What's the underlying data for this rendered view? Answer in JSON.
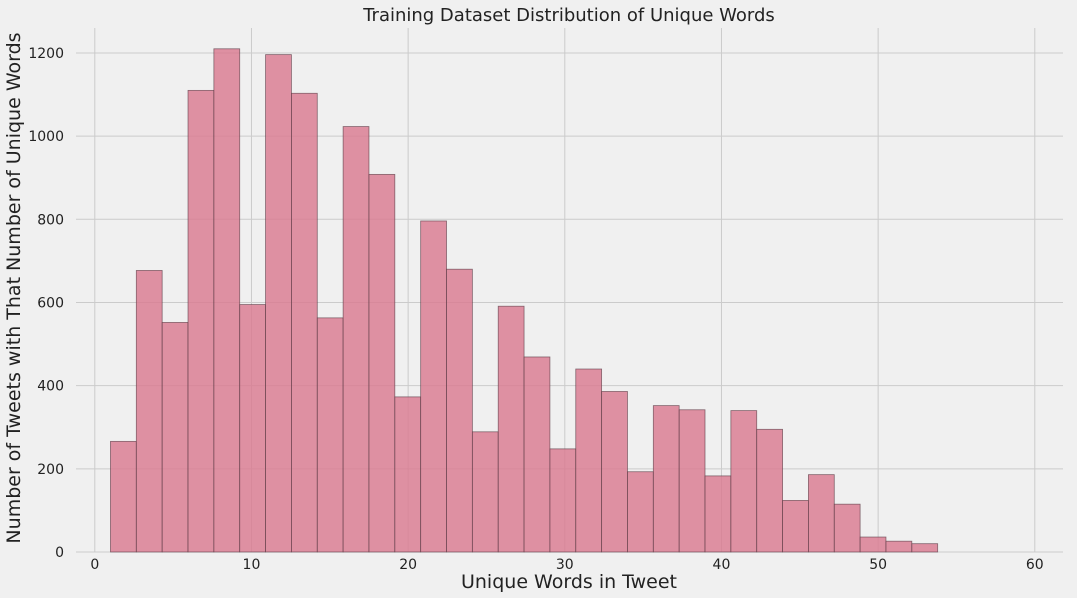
{
  "chart_data": {
    "type": "bar",
    "title": "Training Dataset Distribution of Unique Words",
    "xlabel": "Unique Words in Tweet",
    "ylabel": "Number of Tweets with That Number of Unique Words",
    "xlim": [
      -1.2,
      61.8
    ],
    "ylim": [
      0,
      1260
    ],
    "xticks": [
      0,
      10,
      20,
      30,
      40,
      50,
      60
    ],
    "yticks": [
      0,
      200,
      400,
      600,
      800,
      1000,
      1200
    ],
    "grid": true,
    "bar_color": "#d9788f",
    "bins": [
      {
        "x0": 1.0,
        "x1": 2.65,
        "count": 266
      },
      {
        "x0": 2.65,
        "x1": 4.3,
        "count": 677
      },
      {
        "x0": 4.3,
        "x1": 5.95,
        "count": 552
      },
      {
        "x0": 5.95,
        "x1": 7.6,
        "count": 1110
      },
      {
        "x0": 7.6,
        "x1": 9.25,
        "count": 1210
      },
      {
        "x0": 9.25,
        "x1": 10.9,
        "count": 595
      },
      {
        "x0": 10.9,
        "x1": 12.55,
        "count": 1196
      },
      {
        "x0": 12.55,
        "x1": 14.2,
        "count": 1103
      },
      {
        "x0": 14.2,
        "x1": 15.85,
        "count": 563
      },
      {
        "x0": 15.85,
        "x1": 17.5,
        "count": 1023
      },
      {
        "x0": 17.5,
        "x1": 19.15,
        "count": 908
      },
      {
        "x0": 19.15,
        "x1": 20.8,
        "count": 373
      },
      {
        "x0": 20.8,
        "x1": 22.45,
        "count": 796
      },
      {
        "x0": 22.45,
        "x1": 24.1,
        "count": 680
      },
      {
        "x0": 24.1,
        "x1": 25.75,
        "count": 289
      },
      {
        "x0": 25.75,
        "x1": 27.4,
        "count": 591
      },
      {
        "x0": 27.4,
        "x1": 29.05,
        "count": 469
      },
      {
        "x0": 29.05,
        "x1": 30.7,
        "count": 248
      },
      {
        "x0": 30.7,
        "x1": 32.35,
        "count": 440
      },
      {
        "x0": 32.35,
        "x1": 34.0,
        "count": 386
      },
      {
        "x0": 34.0,
        "x1": 35.65,
        "count": 193
      },
      {
        "x0": 35.65,
        "x1": 37.3,
        "count": 352
      },
      {
        "x0": 37.3,
        "x1": 38.95,
        "count": 342
      },
      {
        "x0": 38.95,
        "x1": 40.6,
        "count": 183
      },
      {
        "x0": 40.6,
        "x1": 42.25,
        "count": 340
      },
      {
        "x0": 42.25,
        "x1": 43.9,
        "count": 295
      },
      {
        "x0": 43.9,
        "x1": 45.55,
        "count": 124
      },
      {
        "x0": 45.55,
        "x1": 47.2,
        "count": 186
      },
      {
        "x0": 47.2,
        "x1": 48.85,
        "count": 115
      },
      {
        "x0": 48.85,
        "x1": 50.5,
        "count": 36
      },
      {
        "x0": 50.5,
        "x1": 52.15,
        "count": 26
      },
      {
        "x0": 52.15,
        "x1": 53.8,
        "count": 20
      }
    ]
  }
}
